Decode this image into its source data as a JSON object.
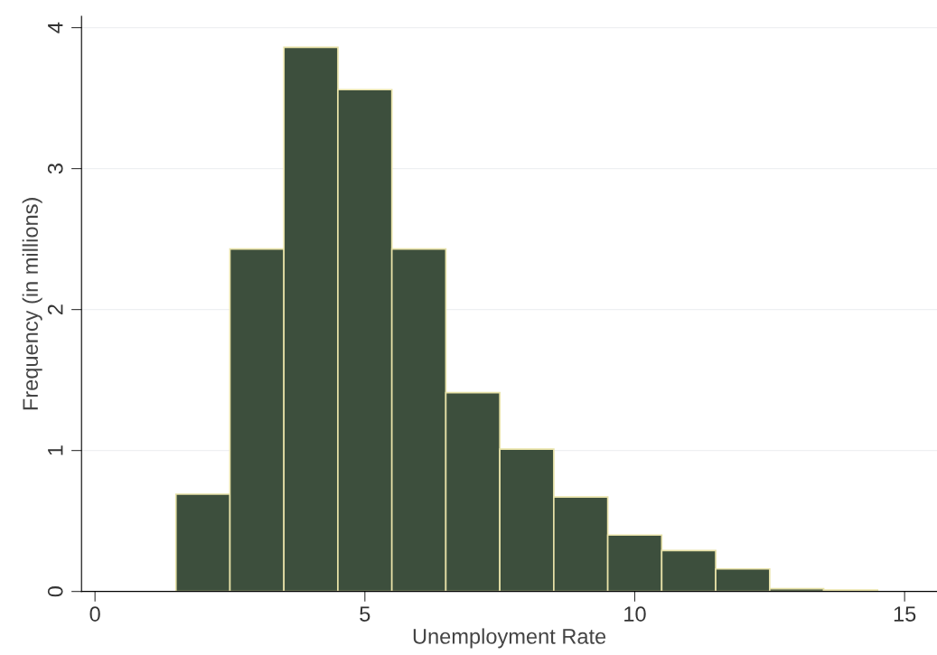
{
  "chart_data": {
    "type": "histogram",
    "xlabel": "Unemployment Rate",
    "ylabel": "Frequency (in millions)",
    "bins": [
      1.5,
      2.5,
      3.5,
      4.5,
      5.5,
      6.5,
      7.5,
      8.5,
      9.5,
      10.5,
      11.5,
      12.5,
      13.5,
      14.5
    ],
    "values": [
      0.69,
      2.43,
      3.86,
      3.56,
      2.43,
      1.41,
      1.01,
      0.67,
      0.4,
      0.29,
      0.16,
      0.02,
      0.01
    ],
    "color": "#3d4f3d",
    "xlim": [
      -0.25,
      15.6
    ],
    "xticks": [
      0,
      5,
      10,
      15
    ],
    "ylim": [
      0,
      4.08
    ],
    "yticks": [
      0,
      1,
      2,
      3,
      4
    ],
    "grid": "y"
  }
}
